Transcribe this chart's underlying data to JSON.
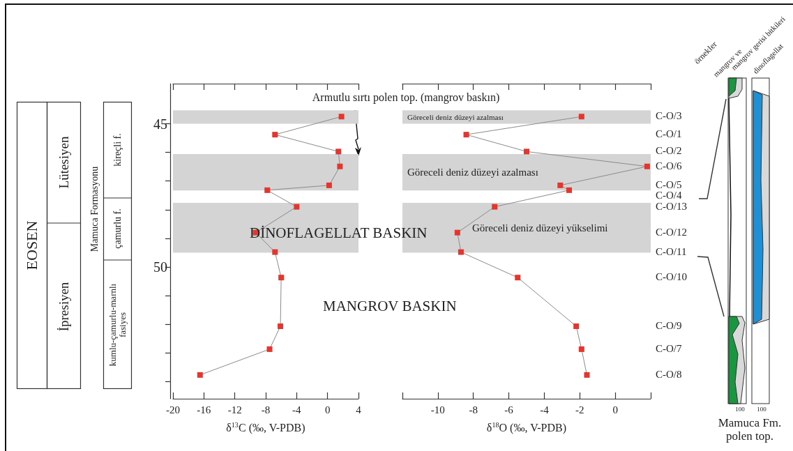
{
  "chart_data": [
    {
      "type": "line",
      "xlabel": "δ$^{13}$C (‰, V-PDB)",
      "color": "#e2362f",
      "marker": "square",
      "line_style": "solid",
      "x": [
        1.8,
        -6.8,
        1.4,
        1.6,
        0.2,
        -7.8,
        -4.0,
        -9.3,
        -6.8,
        -6.0,
        -6.1,
        -7.5,
        -16.5
      ],
      "values": [
        44.75,
        45.38,
        45.97,
        46.49,
        47.15,
        47.32,
        47.9,
        48.8,
        49.48,
        50.37,
        52.07,
        52.87,
        53.77
      ],
      "xlim": [
        -20,
        4
      ],
      "xticks": [
        -20,
        -16,
        -12,
        -8,
        -4,
        0,
        4
      ],
      "ylim": [
        54.6,
        43.6
      ],
      "yticks": [
        45,
        {
          "value": 46,
          "label": null
        },
        {
          "value": 47,
          "label": null
        },
        {
          "value": 48,
          "label": null
        },
        {
          "value": 49,
          "label": null
        },
        50,
        {
          "value": 51,
          "label": null
        },
        {
          "value": 52,
          "label": null
        },
        {
          "value": 53,
          "label": null
        },
        {
          "value": 54,
          "label": null
        }
      ],
      "bands": [
        {
          "axis": "y",
          "from": 44.53,
          "to": 45.0,
          "color": "#d4d4d4"
        },
        {
          "axis": "y",
          "from": 46.06,
          "to": 47.33,
          "color": "#d4d4d4"
        },
        {
          "axis": "y",
          "from": 47.76,
          "to": 49.5,
          "color": "#d4d4d4"
        }
      ],
      "annotations": [
        "Armutlu sırtı polen top. (mangrov baskın)",
        "DİNOFLAGELLAT BASKIN",
        "MANGROV BASKIN",
        "EOSEN",
        "Lütesiyen",
        "İpresiyen",
        "Mamuca Formasyonu",
        "kireçli f.",
        "çamurlu f.",
        "kumlu-çamurlu-marnlı fasiyes"
      ]
    },
    {
      "type": "line",
      "xlabel": "δ$^{18}$O (‰, V-PDB)",
      "color": "#e2362f",
      "marker": "square",
      "line_style": "solid",
      "tick_labels": "x",
      "x": [
        -1.9,
        -8.4,
        -5.0,
        1.8,
        -3.1,
        -2.6,
        -6.8,
        -8.9,
        -8.7,
        -5.5,
        -2.2,
        -1.9,
        -1.6
      ],
      "values": [
        44.75,
        45.38,
        45.97,
        46.49,
        47.15,
        47.32,
        47.9,
        48.8,
        49.48,
        50.37,
        52.07,
        52.87,
        53.77
      ],
      "xlim": [
        -12,
        2
      ],
      "xticks": [
        {
          "value": -12,
          "label": null
        },
        -10,
        -8,
        -6,
        -4,
        -2,
        0,
        {
          "value": 2,
          "label": null
        }
      ],
      "ylim": [
        54.6,
        43.6
      ],
      "bands": [
        {
          "axis": "y",
          "from": 44.53,
          "to": 45.0,
          "color": "#d4d4d4",
          "label": "Göreceli deniz düzeyi azalması"
        },
        {
          "axis": "y",
          "from": 46.06,
          "to": 47.33,
          "color": "#d4d4d4",
          "label": "Göreceli deniz düzeyi azalması"
        },
        {
          "axis": "y",
          "from": 47.76,
          "to": 49.5,
          "color": "#d4d4d4",
          "label": "Göreceli deniz düzeyi yükselimi"
        }
      ],
      "annotations": [
        "C-O/3",
        "C-O/1",
        "C-O/2",
        "C-O/6",
        "C-O/5",
        "C-O/4",
        "C-O/13",
        "C-O/12",
        "C-O/11",
        "C-O/10",
        "C-O/9",
        "C-O/7",
        "C-O/8",
        "örnekler",
        "mangrov ve",
        "mangrov gerisi bitkileri",
        "dinoflagellat",
        "100",
        "100",
        "Mamuca Fm. polen top."
      ]
    }
  ]
}
